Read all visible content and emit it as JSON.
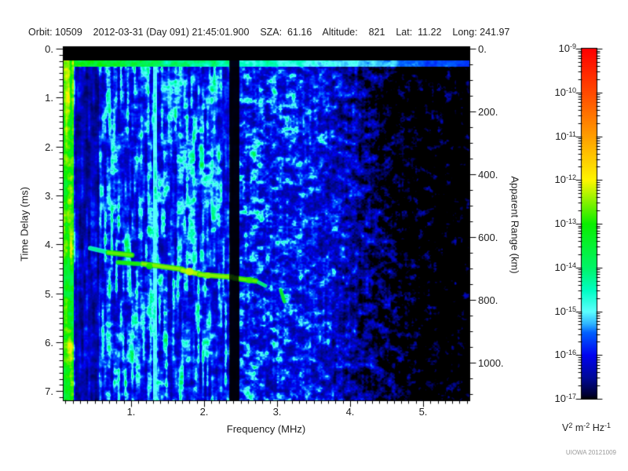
{
  "header": {
    "fields": [
      {
        "label": "Orbit:",
        "value": "10509"
      },
      {
        "label": "",
        "value": "2012-03-31 (Day 091) 21:45:01.900"
      },
      {
        "label": "SZA:",
        "value": " 61.16"
      },
      {
        "label": "Altitude:",
        "value": "   821"
      },
      {
        "label": "Lat:",
        "value": " 11.22"
      },
      {
        "label": "Long:",
        "value": "241.97"
      }
    ]
  },
  "credit": "UIOWA 20121009",
  "chart_data": {
    "type": "heatmap",
    "subtype": "radar-sounder-ionogram-spectrogram",
    "xlabel": "Frequency (MHz)",
    "ylabel_left": "Time Delay (ms)",
    "ylabel_right": "Apparent Range (km)",
    "x_range_mhz": [
      0.065,
      5.63
    ],
    "y_range_ms": [
      0,
      7.22
    ],
    "y2_range_km": [
      0,
      1120
    ],
    "grid": false,
    "x_ticks": [
      {
        "v": 1,
        "label": "1."
      },
      {
        "v": 2,
        "label": "2."
      },
      {
        "v": 3,
        "label": "3."
      },
      {
        "v": 4,
        "label": "4."
      },
      {
        "v": 5,
        "label": "5."
      }
    ],
    "x_minor_step": 0.1,
    "y_ticks": [
      {
        "v": 0,
        "label": "0."
      },
      {
        "v": 1,
        "label": "1."
      },
      {
        "v": 2,
        "label": "2."
      },
      {
        "v": 3,
        "label": "3."
      },
      {
        "v": 4,
        "label": "4."
      },
      {
        "v": 5,
        "label": "5."
      },
      {
        "v": 6,
        "label": "6."
      },
      {
        "v": 7,
        "label": "7."
      }
    ],
    "y_minor_step": 0.125,
    "y2_ticks": [
      {
        "v": 0,
        "label": "0."
      },
      {
        "v": 200,
        "label": "200."
      },
      {
        "v": 400,
        "label": "400."
      },
      {
        "v": 600,
        "label": "600."
      },
      {
        "v": 800,
        "label": "800."
      },
      {
        "v": 1000,
        "label": "1000."
      }
    ],
    "y2_minor_step": 50,
    "colorbar": {
      "scale": "log",
      "tick_exponents": [
        -9,
        -10,
        -11,
        -12,
        -13,
        -14,
        -15,
        -16,
        -17
      ],
      "units_parts": [
        [
          "V",
          "b"
        ],
        [
          "2",
          "s"
        ],
        [
          " m",
          "b"
        ],
        [
          "-2",
          "s"
        ],
        [
          " Hz",
          "b"
        ],
        [
          "-1",
          "s"
        ]
      ],
      "palette": [
        [
          0.0,
          "#000000"
        ],
        [
          0.012,
          "#000032"
        ],
        [
          0.06,
          "#000896"
        ],
        [
          0.125,
          "#0002f0"
        ],
        [
          0.19,
          "#0061ff"
        ],
        [
          0.215,
          "#2fb4ff"
        ],
        [
          0.25,
          "#5cffff"
        ],
        [
          0.31,
          "#00fdc4"
        ],
        [
          0.375,
          "#00f468"
        ],
        [
          0.5,
          "#0aee00"
        ],
        [
          0.625,
          "#fef600"
        ],
        [
          0.75,
          "#ff9e00"
        ],
        [
          0.875,
          "#ff4a00"
        ],
        [
          1.0,
          "#fe0000"
        ]
      ]
    },
    "spectrogram": {
      "noise": {
        "octaves": [
          [
            8.5,
            7.5,
            0.5,
            1
          ],
          [
            4.2,
            3.8,
            0.3,
            2
          ],
          [
            2.1,
            1.9,
            0.2,
            3
          ]
        ],
        "stripe_scale": [
          2.9,
          40
        ],
        "stripe_seed": 4,
        "stripe_mix": 0.45,
        "stripe_full_until_mhz": 2.35,
        "stripe_min_weight": 0.35,
        "floor": 0.1,
        "gain": 1.15,
        "gamma": 2.2
      },
      "base_profile": [
        [
          0.215,
          0.46
        ],
        [
          0.23,
          0.4
        ],
        [
          0.55,
          0.42
        ],
        [
          0.7,
          0.52
        ],
        [
          0.9,
          0.48
        ],
        [
          1.6,
          0.46
        ],
        [
          2.34,
          0.44
        ],
        [
          2.5,
          0.42
        ],
        [
          3.2,
          0.4
        ],
        [
          3.6,
          0.36
        ],
        [
          4.1,
          0.3
        ],
        [
          4.6,
          0.26
        ],
        [
          5.63,
          0.235
        ]
      ],
      "cutoff_profile": [
        [
          3.5,
          0.0
        ],
        [
          4.0,
          0.045
        ],
        [
          4.6,
          0.095
        ],
        [
          5.0,
          0.115
        ],
        [
          5.63,
          0.13
        ]
      ],
      "features": {
        "blank_band_ms": 0.225,
        "transmit_line": {
          "delay_ms": [
            0.225,
            0.36
          ],
          "u_base": 0.46,
          "u_slope": 0.055
        },
        "plasma_stripe": {
          "mhz": [
            0.065,
            0.215
          ],
          "u_min": 0.33,
          "u_var": 0.25
        },
        "dark_band": {
          "mhz": [
            0.23,
            0.55
          ],
          "mult": 0.55
        },
        "instrument_gap": {
          "mhz": [
            2.345,
            2.475
          ],
          "mult": 0.12
        },
        "cyan_line": {
          "mhz": [
            1.295,
            1.35
          ],
          "u_min": 0.22,
          "u_var": 0.06
        }
      },
      "echo_trace": {
        "segments": [
          {
            "f": [
              0.44,
              0.67
            ],
            "d": [
              4.08,
              4.16
            ],
            "u": 0.3,
            "w": 6
          },
          {
            "f": [
              0.69,
              1.01
            ],
            "d": [
              4.17,
              4.22
            ],
            "u": 0.5,
            "w": 7
          },
          {
            "f": [
              0.82,
              1.1
            ],
            "d": [
              4.37,
              4.4
            ],
            "u": 0.46,
            "w": 6
          },
          {
            "f": [
              1.16,
              1.7
            ],
            "d": [
              4.4,
              4.51
            ],
            "u": 0.52,
            "w": 7
          },
          {
            "f": [
              1.7,
              1.94
            ],
            "d": [
              4.53,
              4.61
            ],
            "u": 0.54,
            "w": 7
          },
          {
            "f": [
              1.94,
              2.38
            ],
            "d": [
              4.62,
              4.67
            ],
            "u": 0.52,
            "w": 7
          },
          {
            "f": [
              2.41,
              2.71
            ],
            "d": [
              4.69,
              4.75
            ],
            "u": 0.5,
            "w": 7
          },
          {
            "f": [
              2.75,
              2.84
            ],
            "d": [
              4.78,
              4.85
            ],
            "u": 0.34,
            "w": 5
          },
          {
            "f": [
              3.05,
              3.1
            ],
            "d": [
              4.94,
              5.17
            ],
            "u": 0.42,
            "w": 5
          }
        ],
        "blobs": [
          {
            "f": 1.8,
            "d": 4.56,
            "u": 0.6,
            "r": 5
          },
          {
            "f": 2.05,
            "d": 4.64,
            "u": 0.56,
            "r": 4
          },
          {
            "f": 2.62,
            "d": 4.73,
            "u": 0.52,
            "r": 4
          },
          {
            "f": 1.25,
            "d": 4.45,
            "u": 0.5,
            "r": 4
          }
        ]
      }
    }
  }
}
